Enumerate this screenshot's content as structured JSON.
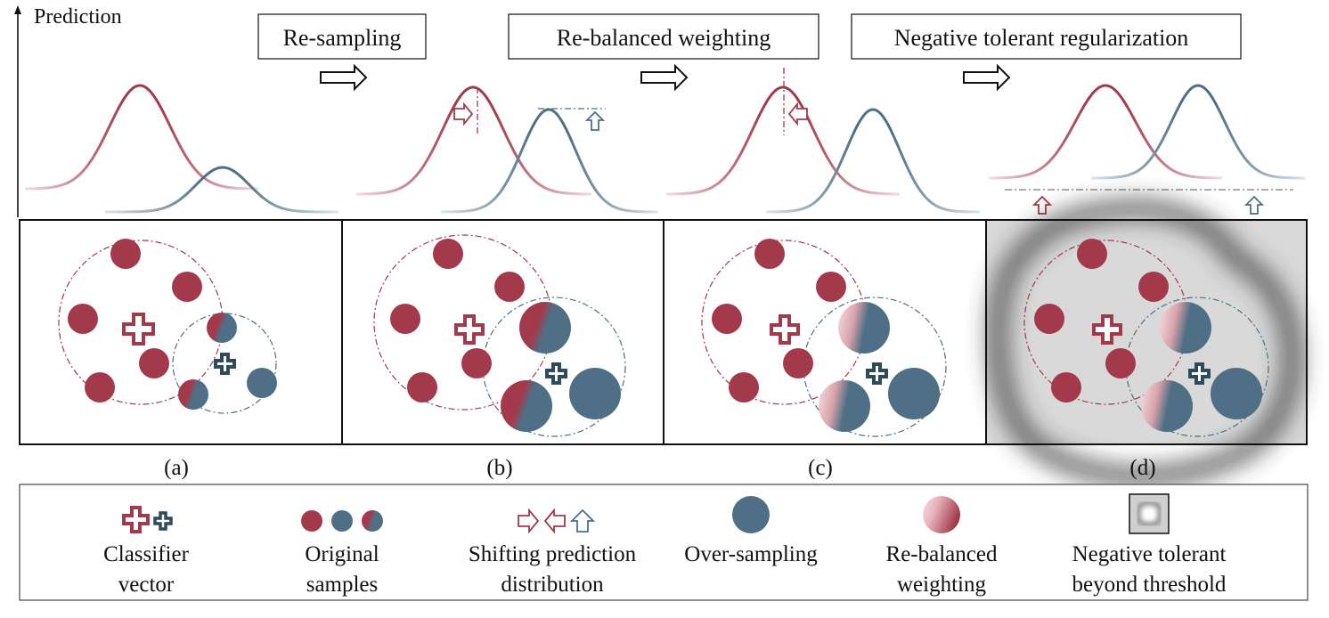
{
  "axis": {
    "ylabel": "Prediction"
  },
  "steps": [
    {
      "label": "Re-sampling"
    },
    {
      "label": "Re-balanced weighting"
    },
    {
      "label": "Negative tolerant regularization"
    }
  ],
  "panels": [
    {
      "caption": "(a)"
    },
    {
      "caption": "(b)"
    },
    {
      "caption": "(c)"
    },
    {
      "caption": "(d)"
    }
  ],
  "legend": {
    "items": [
      {
        "line1": "Classifier",
        "line2": "vector"
      },
      {
        "line1": "Original",
        "line2": "samples"
      },
      {
        "line1": "Shifting prediction",
        "line2": "distribution"
      },
      {
        "line1": "Over-sampling",
        "line2": ""
      },
      {
        "line1": "Re-balanced",
        "line2": "weighting"
      },
      {
        "line1": "Negative tolerant",
        "line2": "beyond threshold"
      }
    ]
  },
  "colors": {
    "red": "#a33a4c",
    "blue": "#4e6f85",
    "red_light": "#f4d8dc",
    "blue_light": "#d8e2e9"
  }
}
